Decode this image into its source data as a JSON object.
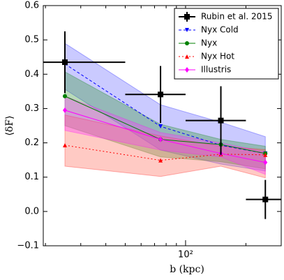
{
  "chart_data": {
    "type": "line",
    "xlabel": "b (kpc)",
    "ylabel": "⟨δF⟩",
    "xscale": "log",
    "xlim": [
      19.5,
      300
    ],
    "xticks": [
      {
        "value": 100,
        "label": "10²"
      }
    ],
    "xminorticks": [
      20,
      30,
      40,
      50,
      60,
      70,
      80,
      90,
      200,
      300
    ],
    "ylim": [
      -0.1,
      0.6
    ],
    "yticks": [
      {
        "value": -0.1,
        "label": "−0.1"
      },
      {
        "value": 0,
        "label": "0.0"
      },
      0.1,
      0.2,
      0.3,
      0.4,
      0.5,
      0.6
    ],
    "legend": "upper right",
    "series": [
      {
        "name": "Rubin et al. 2015",
        "color": "#000000",
        "marker": "square",
        "kind": "errorbar",
        "x": [
          25,
          75,
          150,
          250
        ],
        "values": [
          0.435,
          0.341,
          0.265,
          0.035
        ],
        "yerr": [
          0.09,
          0.083,
          0.1,
          0.057
        ],
        "x_lo": [
          19.5,
          50,
          100,
          200
        ],
        "x_hi": [
          50,
          100,
          200,
          300
        ]
      },
      {
        "name": "Nyx Cold",
        "color": "#0000ff",
        "band_color": "#6666ff",
        "marker": "triangle-down",
        "dash": "4,3",
        "x": [
          25,
          75,
          150,
          250
        ],
        "values": [
          0.43,
          0.248,
          0.193,
          0.169
        ],
        "band_lo": [
          0.356,
          0.179,
          0.138,
          0.118
        ],
        "band_hi": [
          0.49,
          0.311,
          0.26,
          0.218
        ]
      },
      {
        "name": "Nyx",
        "color": "#008000",
        "band_color": "#339933",
        "marker": "circle",
        "dash": "none",
        "x": [
          25,
          75,
          150,
          250
        ],
        "values": [
          0.336,
          0.21,
          0.195,
          0.169
        ],
        "band_lo": [
          0.25,
          0.159,
          0.145,
          0.124
        ],
        "band_hi": [
          0.407,
          0.254,
          0.21,
          0.19
        ]
      },
      {
        "name": "Nyx Hot",
        "color": "#ff0000",
        "band_color": "#ff6655",
        "marker": "triangle-up",
        "dash": "2,3",
        "x": [
          25,
          75,
          150,
          250
        ],
        "values": [
          0.193,
          0.149,
          0.167,
          0.165
        ],
        "band_lo": [
          0.132,
          0.102,
          0.132,
          0.098
        ],
        "band_hi": [
          0.281,
          0.22,
          0.19,
          0.18
        ]
      },
      {
        "name": "Illustris",
        "color": "#ff00ff",
        "band_color": "#ff33ff",
        "marker": "diamond",
        "dash": "none",
        "x": [
          25,
          75,
          150,
          250
        ],
        "values": [
          0.295,
          0.21,
          0.169,
          0.143
        ],
        "band_lo": [
          0.236,
          0.179,
          0.159,
          0.108
        ],
        "band_hi": [
          0.336,
          0.23,
          0.2,
          0.173
        ]
      }
    ]
  }
}
